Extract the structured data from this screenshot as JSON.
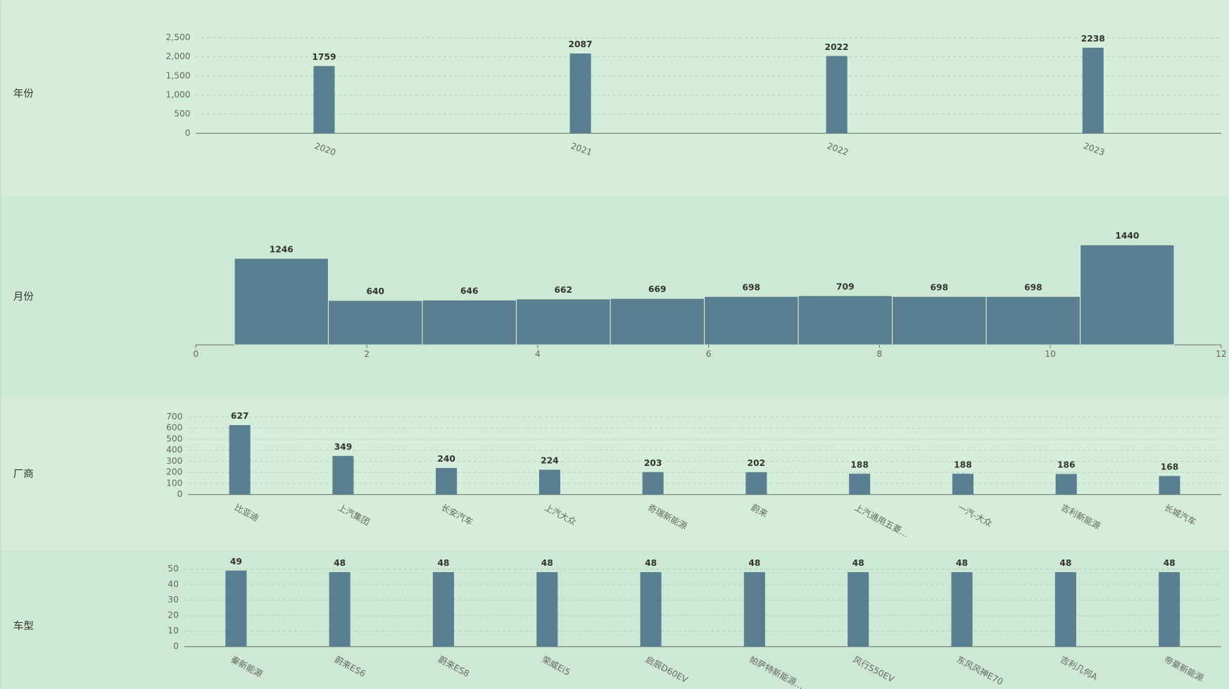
{
  "chart_data": [
    {
      "type": "bar",
      "title": "年份",
      "categories": [
        "2020",
        "2021",
        "2022",
        "2023"
      ],
      "values": [
        1759,
        2087,
        2022,
        2238
      ],
      "color": "#5a7f90",
      "ylim": [
        0,
        2500
      ],
      "yticks": [
        0,
        500,
        {
          "value": 1000,
          "label": "1,000"
        },
        {
          "value": 1500,
          "label": "1,500"
        },
        {
          "value": 2000,
          "label": "2,000"
        },
        {
          "value": 2500,
          "label": "2,500"
        }
      ],
      "grid": true
    },
    {
      "type": "histogram",
      "title": "月份",
      "bins": [
        0.45,
        1.55,
        2.65,
        3.75,
        4.85,
        5.95,
        7.05,
        8.15,
        9.25,
        10.35,
        11.45
      ],
      "values": [
        1246,
        640,
        646,
        662,
        669,
        698,
        709,
        698,
        698,
        1440
      ],
      "color": "#5a7f90",
      "xlim": [
        0,
        12
      ],
      "xticks": [
        0,
        2,
        4,
        6,
        8,
        10,
        12
      ],
      "ylim": [
        0,
        1500
      ],
      "grid": false
    },
    {
      "type": "bar",
      "title": "厂商",
      "categories": [
        "比亚迪",
        "上汽集团",
        "长安汽车",
        "上汽大众",
        "奇瑞新能源",
        "蔚来",
        "上汽通用五菱...",
        "一汽-大众",
        "吉利新能源",
        "长城汽车"
      ],
      "values": [
        627,
        349,
        240,
        224,
        203,
        202,
        188,
        188,
        186,
        168
      ],
      "color": "#5a7f90",
      "ylim": [
        0,
        700
      ],
      "yticks": [
        0,
        100,
        200,
        300,
        400,
        500,
        600,
        700
      ],
      "grid": true
    },
    {
      "type": "bar",
      "title": "车型",
      "categories": [
        "秦新能源",
        "蔚来ES6",
        "蔚来ES8",
        "荣威Ei5",
        "启辰D60EV",
        "帕萨特新能源...",
        "风行S50EV",
        "东风风神E70",
        "吉利几何A",
        "帝豪新能源"
      ],
      "values": [
        49,
        48,
        48,
        48,
        48,
        48,
        48,
        48,
        48,
        48
      ],
      "color": "#5a7f90",
      "ylim": [
        0,
        50
      ],
      "yticks": [
        0,
        10,
        20,
        30,
        40,
        50
      ],
      "grid": true
    }
  ]
}
